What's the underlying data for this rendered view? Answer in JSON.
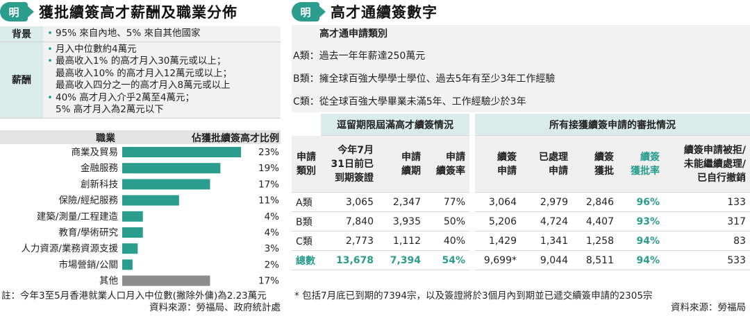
{
  "left": {
    "badge": "明",
    "title": "獲批續簽高才薪酬及職業分佈",
    "info": [
      {
        "label": "背景",
        "lines": [
          {
            "bullet": true,
            "text": "95% 來自內地、5% 來自其他國家"
          }
        ]
      },
      {
        "label": "薪酬",
        "lines": [
          {
            "bullet": true,
            "text": "月入中位數約4萬元"
          },
          {
            "bullet": true,
            "text": "最高收入1% 的高才月入30萬元或以上；"
          },
          {
            "bullet": false,
            "text": "最高收入10% 的高才月入12萬元或以上；"
          },
          {
            "bullet": false,
            "text": "最高收入四分之一的高才月入8萬元或以上"
          },
          {
            "bullet": true,
            "text": "40% 高才月入介乎2萬至4萬元；"
          },
          {
            "bullet": false,
            "text": "5% 高才月入為2萬元以下"
          }
        ]
      }
    ],
    "chart_header": {
      "occupation": "職業",
      "share": "佔獲批續簽高才比例"
    },
    "footnote": "註：今年3至5月香港就業人口月入中位數(撇除外傭)為2.23萬元",
    "source": "資料來源：勞福局、政府統計處",
    "colors": {
      "teal": "#2a9d8f",
      "gray": "#8c8c8c"
    }
  },
  "chart_data": {
    "type": "bar",
    "orientation": "horizontal",
    "categories": [
      "商業及貿易",
      "金融服務",
      "創新科技",
      "保險/經紀服務",
      "建築/測量/工程建造",
      "教育/學術研究",
      "人力資源/業務資源支援",
      "市場營銷/公關",
      "其他"
    ],
    "values": [
      23,
      19,
      17,
      11,
      4,
      4,
      3,
      2,
      17
    ],
    "labels": [
      "23%",
      "19%",
      "17%",
      "11%",
      "4%",
      "4%",
      "3%",
      "2%",
      "17%"
    ],
    "xlim": [
      0,
      25
    ],
    "title": "",
    "xlabel": "佔獲批續簽高才比例",
    "ylabel": "職業"
  },
  "right": {
    "badge": "明",
    "title": "高才通續簽數字",
    "categories_title": "高才通申請類別",
    "categories": [
      "A類：過去一年年薪達250萬元",
      "B類：擁全球百強大學學士學位、過去5年有至少3年工作經驗",
      "C類：從全球百強大學畢業未滿5年、工作經驗少於3年"
    ],
    "group_headers": [
      "逗留期限屆滿高才續簽情況",
      "所有接獲續簽申請的審批情況"
    ],
    "col_headers": [
      "申請\n類別",
      "今年7月\n31日前已\n到期簽證",
      "申請\n續期",
      "申請\n續簽率",
      "續簽\n申請",
      "已處理\n申請",
      "續簽\n獲批",
      "續簽\n獲批率",
      "續簽申請被拒/\n未能繼續處理/\n已自行撤銷"
    ],
    "rows": [
      {
        "name": "A類",
        "cells": [
          "3,065",
          "2,347",
          "77%",
          "3,064",
          "2,979",
          "2,846",
          "96%",
          "133"
        ]
      },
      {
        "name": "B類",
        "cells": [
          "7,840",
          "3,935",
          "50%",
          "5,206",
          "4,724",
          "4,407",
          "93%",
          "317"
        ]
      },
      {
        "name": "C類",
        "cells": [
          "2,773",
          "1,112",
          "40%",
          "1,429",
          "1,341",
          "1,258",
          "94%",
          "83"
        ]
      }
    ],
    "total": {
      "name": "總數",
      "cells": [
        "13,678",
        "7,394",
        "54%",
        "9,699*",
        "9,044",
        "8,511",
        "94%",
        "533"
      ]
    },
    "footnote": "* 包括7月底已到期的7394宗，以及簽證將於3個月內到期並已遞交續簽申請的2305宗",
    "source": "資料來源：勞福局"
  }
}
